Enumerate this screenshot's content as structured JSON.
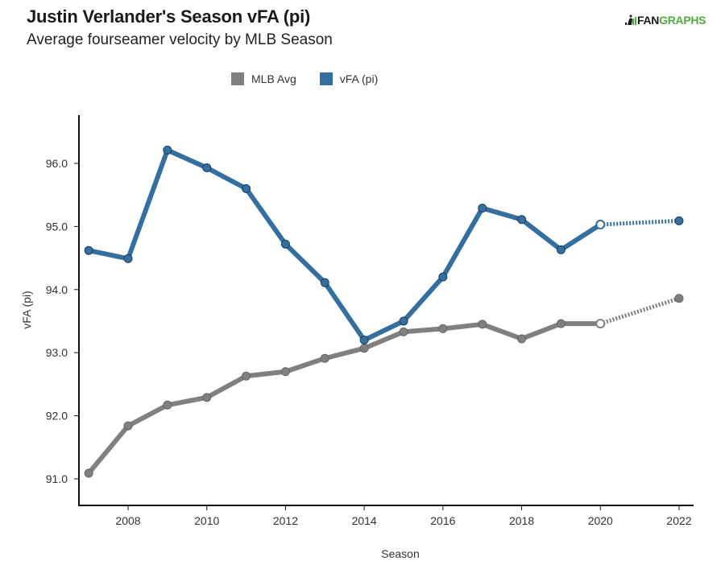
{
  "header": {
    "title": "Justin Verlander's Season vFA (pi)",
    "subtitle": "Average fourseamer velocity by MLB Season",
    "logo_part1": "FAN",
    "logo_part2": "GRAPHS"
  },
  "colors": {
    "mlb_avg": "#808080",
    "vfa": "#346fa0",
    "logo_green": "#4cae3c"
  },
  "chart_data": {
    "type": "line",
    "title": "Justin Verlander's Season vFA (pi)",
    "subtitle": "Average fourseamer velocity by MLB Season",
    "xlabel": "Season",
    "ylabel": "vFA (pi)",
    "xlim": [
      2006.9,
      2022.4
    ],
    "ylim": [
      90.6,
      96.75
    ],
    "x_ticks": [
      2008,
      2010,
      2012,
      2014,
      2016,
      2018,
      2020,
      2022
    ],
    "x_tick_labels": [
      "2008",
      "2010",
      "2012",
      "2014",
      "2016",
      "2018",
      "2020",
      "2022"
    ],
    "y_ticks": [
      91.0,
      92.0,
      93.0,
      94.0,
      95.0,
      96.0
    ],
    "y_tick_labels": [
      "91.0",
      "92.0",
      "93.0",
      "94.0",
      "95.0",
      "96.0"
    ],
    "grid": false,
    "legend_position": "top-center",
    "x": [
      2007,
      2008,
      2009,
      2010,
      2011,
      2012,
      2013,
      2014,
      2015,
      2016,
      2017,
      2018,
      2019,
      2020,
      2022
    ],
    "series": [
      {
        "name": "MLB Avg",
        "color": "#808080",
        "values": [
          91.09,
          91.84,
          92.17,
          92.29,
          92.63,
          92.7,
          92.91,
          93.07,
          93.33,
          93.38,
          93.45,
          93.22,
          93.46,
          93.46,
          93.86
        ],
        "dotted_from_index": 13,
        "hollow_index": 13
      },
      {
        "name": "vFA (pi)",
        "color": "#346fa0",
        "values": [
          94.62,
          94.49,
          96.21,
          95.93,
          95.6,
          94.72,
          94.11,
          93.2,
          93.5,
          94.2,
          95.29,
          95.11,
          94.63,
          95.03,
          95.09
        ],
        "dotted_from_index": 13,
        "hollow_index": 13
      }
    ]
  }
}
